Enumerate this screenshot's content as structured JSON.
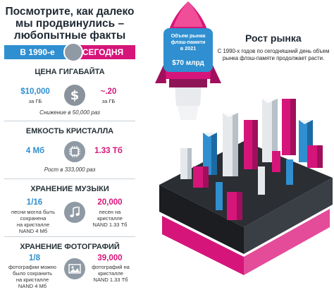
{
  "title": {
    "line1": "Посмотрите, как далеко",
    "line2": "мы продвинулись –",
    "line3": "любопытные факты"
  },
  "era": {
    "past": "В 1990-е",
    "now": "СЕГОДНЯ"
  },
  "sections": {
    "price": {
      "title": "ЦЕНА ГИГАБАЙТА",
      "past_value": "$10,000",
      "past_unit": "за ГБ",
      "now_value": "~.20",
      "now_unit": "за ГБ",
      "note": "Снижение в 50,000 раз",
      "icon": "dollar-icon"
    },
    "capacity": {
      "title": "ЕМКОСТЬ КРИСТАЛЛА",
      "past_value": "4 Мб",
      "now_value": "1.33 Тб",
      "note": "Рост в 333,000 раз",
      "icon": "chip-icon"
    },
    "music": {
      "title": "ХРАНЕНИЕ МУЗЫКИ",
      "past_value": "1/16",
      "past_text": [
        "песни могла быть",
        "сохранена",
        "на кристалле",
        "NAND 4 Мб"
      ],
      "now_value": "20,000",
      "now_text": [
        "песен на",
        "кристалле",
        "NAND 1.33 Тб"
      ],
      "icon": "music-note-icon"
    },
    "photo": {
      "title": "ХРАНЕНИЕ ФОТОГРАФИЙ",
      "past_value": "1/8",
      "past_text": [
        "фотографии можно",
        "было сохранить",
        "на кристалле",
        "NAND 4 Мб"
      ],
      "now_value": "39,000",
      "now_text": [
        "фотографий на",
        "кристалле",
        "NAND 1.33 Тб"
      ],
      "icon": "photo-icon"
    }
  },
  "rocket": {
    "label_lines": [
      "Объем рынка",
      "флэш-памяти",
      "в 2021"
    ],
    "value": "$70 млрд"
  },
  "market": {
    "title": "Рост рынка",
    "text": "С 1990-х годов по сегодняшний день объем рынка флэш-памяти продолжает расти."
  },
  "colors": {
    "blue": "#2f8fd0",
    "pink": "#d6157a",
    "gray": "#8f9aa5",
    "dark": "#2b2e33"
  }
}
